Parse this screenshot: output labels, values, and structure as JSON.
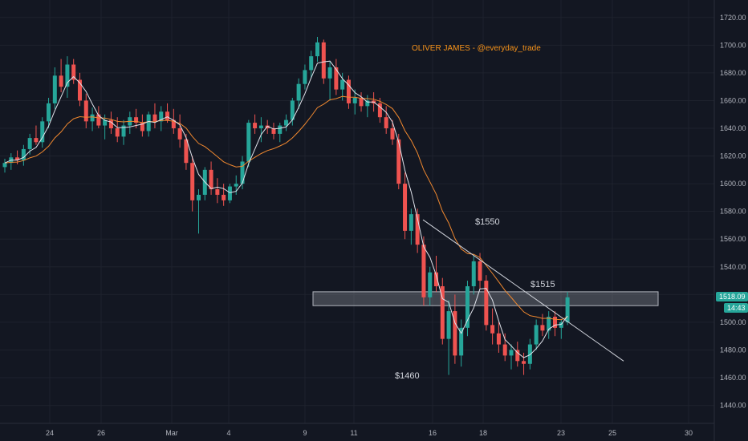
{
  "chart_data": {
    "type": "candlestick",
    "watermark": "OLIVER JAMES - @everyday_trade",
    "y_axis": {
      "ylim": [
        1428,
        1728
      ],
      "ticks": [
        "1440.00",
        "1460.00",
        "1480.00",
        "1500.00",
        "1520.00",
        "1540.00",
        "1560.00",
        "1580.00",
        "1600.00",
        "1620.00",
        "1640.00",
        "1660.00",
        "1680.00",
        "1700.00",
        "1720.00"
      ],
      "position": "right"
    },
    "x_axis": {
      "ticks": [
        "24",
        "26",
        "Mar",
        "4",
        "9",
        "11",
        "16",
        "18",
        "23",
        "25",
        "30"
      ]
    },
    "price_badge": "1518.09",
    "countdown_badge": "14:43",
    "annotations": [
      "$1550",
      "$1515",
      "$1460"
    ],
    "resistance_zone": [
      1512,
      1522
    ],
    "trendline": {
      "from": 1574,
      "to": 1472
    },
    "colors": {
      "background": "#131722",
      "up": "#26a69a",
      "down": "#ef5350",
      "fast_ma": "#e0e3eb",
      "slow_ma": "#f0882f",
      "zone": "#9598a1",
      "watermark": "#f7931a",
      "axis_text": "#b2b5be"
    },
    "series": [
      {
        "name": "candles",
        "values": [
          [
            1612,
            1618,
            1608,
            1615
          ],
          [
            1615,
            1622,
            1610,
            1619
          ],
          [
            1619,
            1624,
            1614,
            1617
          ],
          [
            1617,
            1628,
            1613,
            1625
          ],
          [
            1625,
            1636,
            1621,
            1633
          ],
          [
            1633,
            1642,
            1628,
            1630
          ],
          [
            1630,
            1648,
            1626,
            1645
          ],
          [
            1645,
            1662,
            1640,
            1658
          ],
          [
            1658,
            1684,
            1654,
            1678
          ],
          [
            1678,
            1690,
            1666,
            1670
          ],
          [
            1670,
            1692,
            1662,
            1686
          ],
          [
            1686,
            1690,
            1672,
            1675
          ],
          [
            1675,
            1680,
            1656,
            1660
          ],
          [
            1660,
            1665,
            1640,
            1645
          ],
          [
            1645,
            1655,
            1638,
            1650
          ],
          [
            1650,
            1656,
            1640,
            1642
          ],
          [
            1642,
            1650,
            1632,
            1646
          ],
          [
            1646,
            1652,
            1636,
            1640
          ],
          [
            1640,
            1648,
            1630,
            1634
          ],
          [
            1634,
            1646,
            1628,
            1642
          ],
          [
            1642,
            1652,
            1636,
            1648
          ],
          [
            1648,
            1654,
            1640,
            1644
          ],
          [
            1644,
            1650,
            1634,
            1638
          ],
          [
            1638,
            1652,
            1634,
            1650
          ],
          [
            1650,
            1658,
            1640,
            1645
          ],
          [
            1645,
            1656,
            1638,
            1652
          ],
          [
            1652,
            1658,
            1644,
            1646
          ],
          [
            1646,
            1654,
            1636,
            1640
          ],
          [
            1640,
            1650,
            1626,
            1632
          ],
          [
            1632,
            1636,
            1610,
            1615
          ],
          [
            1615,
            1620,
            1580,
            1588
          ],
          [
            1588,
            1596,
            1564,
            1592
          ],
          [
            1592,
            1612,
            1588,
            1610
          ],
          [
            1610,
            1616,
            1592,
            1596
          ],
          [
            1596,
            1604,
            1586,
            1592
          ],
          [
            1592,
            1600,
            1584,
            1588
          ],
          [
            1588,
            1600,
            1586,
            1598
          ],
          [
            1598,
            1606,
            1592,
            1600
          ],
          [
            1600,
            1620,
            1596,
            1616
          ],
          [
            1616,
            1646,
            1612,
            1644
          ],
          [
            1644,
            1650,
            1636,
            1640
          ],
          [
            1640,
            1648,
            1630,
            1642
          ],
          [
            1642,
            1646,
            1636,
            1640
          ],
          [
            1640,
            1644,
            1632,
            1636
          ],
          [
            1636,
            1644,
            1630,
            1642
          ],
          [
            1642,
            1650,
            1638,
            1646
          ],
          [
            1646,
            1662,
            1642,
            1660
          ],
          [
            1660,
            1676,
            1654,
            1672
          ],
          [
            1672,
            1686,
            1668,
            1682
          ],
          [
            1682,
            1696,
            1676,
            1692
          ],
          [
            1692,
            1706,
            1688,
            1702
          ],
          [
            1702,
            1704,
            1672,
            1676
          ],
          [
            1676,
            1688,
            1660,
            1684
          ],
          [
            1684,
            1690,
            1664,
            1668
          ],
          [
            1668,
            1680,
            1660,
            1675
          ],
          [
            1675,
            1678,
            1654,
            1658
          ],
          [
            1658,
            1668,
            1650,
            1662
          ],
          [
            1662,
            1666,
            1652,
            1656
          ],
          [
            1656,
            1664,
            1648,
            1660
          ],
          [
            1660,
            1666,
            1652,
            1658
          ],
          [
            1658,
            1662,
            1644,
            1648
          ],
          [
            1648,
            1656,
            1636,
            1640
          ],
          [
            1640,
            1646,
            1628,
            1632
          ],
          [
            1632,
            1636,
            1596,
            1600
          ],
          [
            1600,
            1608,
            1560,
            1566
          ],
          [
            1566,
            1582,
            1556,
            1578
          ],
          [
            1578,
            1582,
            1550,
            1556
          ],
          [
            1556,
            1562,
            1512,
            1518
          ],
          [
            1518,
            1540,
            1512,
            1536
          ],
          [
            1536,
            1548,
            1522,
            1526
          ],
          [
            1526,
            1532,
            1484,
            1488
          ],
          [
            1488,
            1516,
            1462,
            1508
          ],
          [
            1508,
            1520,
            1470,
            1476
          ],
          [
            1476,
            1502,
            1468,
            1496
          ],
          [
            1496,
            1530,
            1490,
            1526
          ],
          [
            1526,
            1548,
            1520,
            1544
          ],
          [
            1544,
            1550,
            1524,
            1530
          ],
          [
            1530,
            1534,
            1494,
            1498
          ],
          [
            1498,
            1510,
            1484,
            1492
          ],
          [
            1492,
            1500,
            1478,
            1484
          ],
          [
            1484,
            1492,
            1472,
            1476
          ],
          [
            1476,
            1484,
            1466,
            1480
          ],
          [
            1480,
            1486,
            1468,
            1472
          ],
          [
            1472,
            1478,
            1462,
            1470
          ],
          [
            1470,
            1488,
            1466,
            1484
          ],
          [
            1484,
            1502,
            1480,
            1498
          ],
          [
            1498,
            1506,
            1490,
            1494
          ],
          [
            1494,
            1508,
            1488,
            1504
          ],
          [
            1504,
            1508,
            1490,
            1496
          ],
          [
            1496,
            1502,
            1488,
            1500
          ],
          [
            1500,
            1522,
            1498,
            1518
          ]
        ]
      }
    ]
  }
}
